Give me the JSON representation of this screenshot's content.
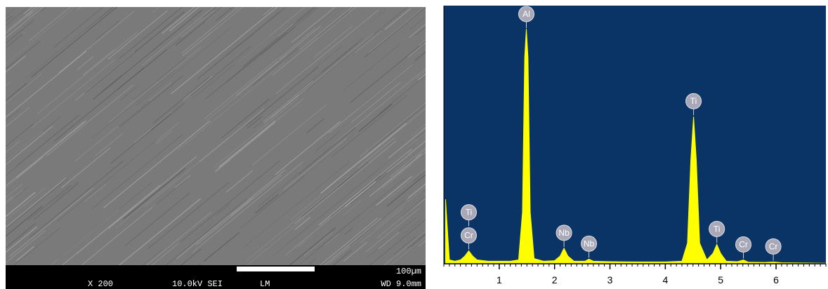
{
  "sem_image": {
    "info_bar": [
      "X 200",
      "10.0kV SEI",
      "LM",
      "WD 9.0mm"
    ],
    "scale_bar": "100µm"
  },
  "chart_data": {
    "type": "area",
    "x": [
      0.03,
      0.1,
      0.2,
      0.3,
      0.38,
      0.45,
      0.52,
      0.6,
      0.8,
      1.0,
      1.2,
      1.35,
      1.42,
      1.46,
      1.49,
      1.52,
      1.56,
      1.63,
      1.8,
      2.0,
      2.1,
      2.17,
      2.24,
      2.35,
      2.55,
      2.62,
      2.7,
      3.0,
      3.5,
      4.0,
      4.3,
      4.4,
      4.46,
      4.51,
      4.56,
      4.62,
      4.75,
      4.86,
      4.93,
      5.0,
      5.1,
      5.3,
      5.41,
      5.5,
      5.8,
      5.95,
      6.1,
      6.5,
      6.9
    ],
    "values": [
      25,
      1.5,
      1,
      1.5,
      3,
      5,
      3,
      1.5,
      1,
      1,
      1,
      1.5,
      20,
      80,
      91,
      80,
      20,
      2,
      1,
      1.2,
      3,
      6,
      3,
      1,
      1,
      1.8,
      1,
      0.8,
      0.7,
      0.7,
      1,
      8,
      40,
      57,
      40,
      8,
      1.5,
      4,
      7.5,
      4,
      1,
      0.8,
      1.5,
      0.6,
      0.5,
      0.7,
      0.4,
      0.3,
      0.2
    ],
    "color": "#ffff00",
    "background": "#0a3366",
    "xlim": [
      0,
      6.9
    ],
    "ylim": [
      0,
      100
    ],
    "xticks": [
      1,
      2,
      3,
      4,
      5,
      6
    ],
    "peak_labels": [
      {
        "text": "Cr",
        "x": 0.45
      },
      {
        "text": "Ti",
        "x": 0.45
      },
      {
        "text": "Al",
        "x": 1.49
      },
      {
        "text": "Nb",
        "x": 2.17
      },
      {
        "text": "Nb",
        "x": 2.62
      },
      {
        "text": "Ti",
        "x": 4.51
      },
      {
        "text": "Ti",
        "x": 4.93
      },
      {
        "text": "Cr",
        "x": 5.41
      },
      {
        "text": "Cr",
        "x": 5.95
      }
    ]
  }
}
